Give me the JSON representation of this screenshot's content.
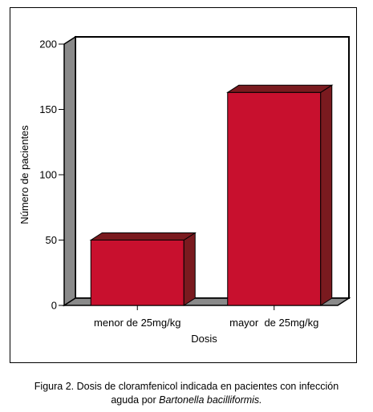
{
  "chart_data": {
    "type": "bar",
    "categories": [
      "menor de 25mg/kg",
      "mayor  de 25mg/kg"
    ],
    "values": [
      50,
      163
    ],
    "xlabel": "Dosis",
    "ylabel": "Número de pacientes",
    "ylim": [
      0,
      200
    ],
    "yticks": [
      "0",
      "50",
      "100",
      "150",
      "200"
    ],
    "grid": false,
    "bar_color": "#c8102e",
    "bar_side_color": "#7a1a1f",
    "wall_color": "#8a8a8a"
  },
  "caption": {
    "prefix": "Figura 2. Dosis de cloramfenicol indicada en pacientes con infección",
    "line2_plain": "aguda por ",
    "line2_italic": "Bartonella bacilliformis."
  }
}
